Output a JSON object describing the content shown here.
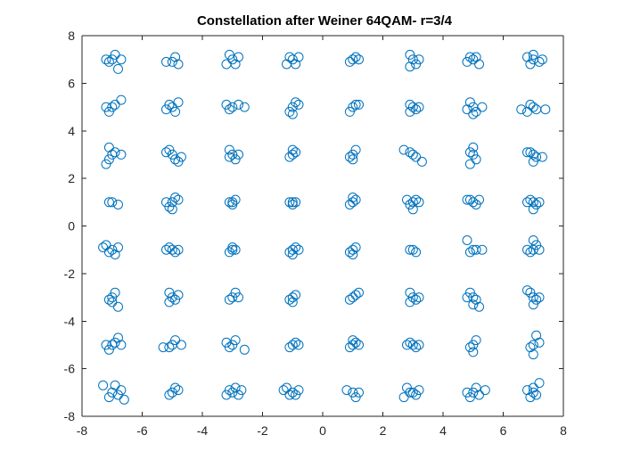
{
  "chart_data": {
    "type": "scatter",
    "title": "Constellation after Weiner 64QAM- r=3/4",
    "xlabel": "",
    "ylabel": "",
    "xlim": [
      -8,
      8
    ],
    "ylim": [
      -8,
      8
    ],
    "x_ticks": [
      -8,
      -6,
      -4,
      -2,
      0,
      2,
      4,
      6,
      8
    ],
    "y_ticks": [
      -8,
      -6,
      -4,
      -2,
      0,
      2,
      4,
      6,
      8
    ],
    "x_tick_labels": [
      "-8",
      "-6",
      "-4",
      "-2",
      "0",
      "2",
      "4",
      "6",
      "8"
    ],
    "y_tick_labels": [
      "-8",
      "-6",
      "-4",
      "-2",
      "0",
      "2",
      "4",
      "6",
      "8"
    ],
    "grid": false,
    "legend": "none",
    "marker": "hollow-circle",
    "marker_color": "#0072BD",
    "axis_color": "#262626",
    "series": [
      {
        "points": [
          [
            -7.0,
            7.0
          ],
          [
            -6.9,
            7.2
          ],
          [
            -7.1,
            6.9
          ],
          [
            -6.8,
            6.6
          ],
          [
            -7.2,
            7.0
          ],
          [
            -6.7,
            7.0
          ],
          [
            -5.0,
            6.9
          ],
          [
            -4.8,
            6.8
          ],
          [
            -5.2,
            6.9
          ],
          [
            -4.9,
            7.1
          ],
          [
            -3.0,
            7.0
          ],
          [
            -2.8,
            7.1
          ],
          [
            -3.2,
            6.8
          ],
          [
            -2.9,
            6.8
          ],
          [
            -3.1,
            7.2
          ],
          [
            -1.0,
            7.0
          ],
          [
            -0.8,
            7.1
          ],
          [
            -1.2,
            6.8
          ],
          [
            -0.9,
            6.8
          ],
          [
            -1.1,
            7.1
          ],
          [
            1.0,
            7.0
          ],
          [
            1.2,
            7.0
          ],
          [
            0.9,
            6.9
          ],
          [
            1.1,
            7.1
          ],
          [
            3.0,
            7.0
          ],
          [
            2.9,
            7.2
          ],
          [
            3.1,
            6.8
          ],
          [
            2.9,
            6.7
          ],
          [
            3.2,
            7.0
          ],
          [
            5.0,
            7.0
          ],
          [
            4.9,
            7.1
          ],
          [
            5.2,
            6.8
          ],
          [
            4.8,
            6.9
          ],
          [
            5.1,
            7.1
          ],
          [
            7.0,
            7.0
          ],
          [
            6.8,
            7.1
          ],
          [
            7.2,
            6.9
          ],
          [
            6.9,
            6.8
          ],
          [
            7.3,
            7.0
          ],
          [
            7.0,
            7.2
          ],
          [
            -7.0,
            5.0
          ],
          [
            -7.1,
            4.8
          ],
          [
            -6.9,
            5.1
          ],
          [
            -6.7,
            5.3
          ],
          [
            -7.2,
            5.0
          ],
          [
            -5.0,
            5.0
          ],
          [
            -4.9,
            4.8
          ],
          [
            -5.1,
            5.1
          ],
          [
            -4.8,
            5.2
          ],
          [
            -5.2,
            4.9
          ],
          [
            -3.0,
            5.0
          ],
          [
            -2.8,
            5.1
          ],
          [
            -3.1,
            4.9
          ],
          [
            -2.6,
            5.0
          ],
          [
            -3.2,
            5.1
          ],
          [
            -1.0,
            5.0
          ],
          [
            -0.9,
            5.2
          ],
          [
            -1.1,
            4.8
          ],
          [
            -0.8,
            5.1
          ],
          [
            -1.0,
            4.7
          ],
          [
            1.0,
            5.0
          ],
          [
            1.1,
            5.1
          ],
          [
            0.9,
            4.8
          ],
          [
            1.2,
            5.1
          ],
          [
            3.0,
            5.0
          ],
          [
            2.9,
            5.1
          ],
          [
            3.1,
            4.9
          ],
          [
            3.2,
            5.0
          ],
          [
            2.9,
            4.8
          ],
          [
            5.0,
            5.0
          ],
          [
            4.9,
            5.2
          ],
          [
            5.1,
            4.8
          ],
          [
            5.3,
            5.0
          ],
          [
            4.8,
            4.9
          ],
          [
            5.0,
            4.7
          ],
          [
            7.0,
            5.0
          ],
          [
            6.9,
            5.1
          ],
          [
            7.1,
            4.9
          ],
          [
            7.4,
            4.9
          ],
          [
            6.6,
            4.9
          ],
          [
            6.8,
            4.8
          ],
          [
            -7.0,
            3.0
          ],
          [
            -7.1,
            2.8
          ],
          [
            -6.9,
            3.1
          ],
          [
            -7.1,
            3.3
          ],
          [
            -6.7,
            3.0
          ],
          [
            -7.2,
            2.6
          ],
          [
            -5.0,
            3.0
          ],
          [
            -5.1,
            3.2
          ],
          [
            -4.9,
            2.8
          ],
          [
            -4.7,
            2.9
          ],
          [
            -5.2,
            3.1
          ],
          [
            -4.8,
            2.7
          ],
          [
            -3.0,
            3.0
          ],
          [
            -3.1,
            3.2
          ],
          [
            -2.9,
            2.8
          ],
          [
            -2.8,
            3.0
          ],
          [
            -3.1,
            2.9
          ],
          [
            -1.0,
            3.0
          ],
          [
            -0.9,
            3.1
          ],
          [
            -1.1,
            2.9
          ],
          [
            -1.0,
            3.2
          ],
          [
            1.0,
            3.0
          ],
          [
            1.1,
            3.2
          ],
          [
            0.9,
            2.9
          ],
          [
            1.0,
            2.8
          ],
          [
            3.0,
            3.0
          ],
          [
            2.9,
            3.1
          ],
          [
            3.1,
            2.9
          ],
          [
            3.3,
            2.7
          ],
          [
            2.7,
            3.2
          ],
          [
            5.0,
            3.0
          ],
          [
            4.9,
            3.1
          ],
          [
            5.1,
            2.8
          ],
          [
            4.9,
            2.6
          ],
          [
            5.0,
            3.3
          ],
          [
            7.0,
            3.0
          ],
          [
            6.9,
            3.1
          ],
          [
            7.1,
            2.9
          ],
          [
            7.3,
            2.9
          ],
          [
            7.0,
            2.7
          ],
          [
            6.8,
            3.1
          ],
          [
            -7.0,
            1.0
          ],
          [
            -6.8,
            0.9
          ],
          [
            -7.1,
            1.0
          ],
          [
            -5.0,
            1.0
          ],
          [
            -4.9,
            1.2
          ],
          [
            -5.1,
            0.8
          ],
          [
            -4.8,
            1.1
          ],
          [
            -5.0,
            0.7
          ],
          [
            -5.2,
            1.0
          ],
          [
            -3.0,
            1.0
          ],
          [
            -2.9,
            1.1
          ],
          [
            -3.1,
            1.0
          ],
          [
            -3.0,
            0.9
          ],
          [
            -1.0,
            1.0
          ],
          [
            -0.9,
            1.0
          ],
          [
            -1.1,
            1.0
          ],
          [
            -1.0,
            0.9
          ],
          [
            1.0,
            1.0
          ],
          [
            1.1,
            1.1
          ],
          [
            0.9,
            0.9
          ],
          [
            1.0,
            1.2
          ],
          [
            3.0,
            1.0
          ],
          [
            3.1,
            1.1
          ],
          [
            2.9,
            0.9
          ],
          [
            3.0,
            0.7
          ],
          [
            3.2,
            1.0
          ],
          [
            2.8,
            1.1
          ],
          [
            5.0,
            1.0
          ],
          [
            4.9,
            1.1
          ],
          [
            5.1,
            0.9
          ],
          [
            5.2,
            1.1
          ],
          [
            4.8,
            1.1
          ],
          [
            7.0,
            1.0
          ],
          [
            6.9,
            1.1
          ],
          [
            7.1,
            0.9
          ],
          [
            7.0,
            0.7
          ],
          [
            7.2,
            1.0
          ],
          [
            6.8,
            1.0
          ],
          [
            -7.0,
            -1.0
          ],
          [
            -7.2,
            -0.8
          ],
          [
            -6.8,
            -0.9
          ],
          [
            -7.1,
            -1.1
          ],
          [
            -6.9,
            -1.2
          ],
          [
            -7.3,
            -0.9
          ],
          [
            -5.0,
            -1.0
          ],
          [
            -5.1,
            -0.9
          ],
          [
            -4.9,
            -1.1
          ],
          [
            -4.8,
            -1.0
          ],
          [
            -5.2,
            -1.0
          ],
          [
            -3.0,
            -1.0
          ],
          [
            -2.9,
            -1.0
          ],
          [
            -3.1,
            -1.1
          ],
          [
            -3.0,
            -0.9
          ],
          [
            -1.0,
            -1.0
          ],
          [
            -0.9,
            -0.9
          ],
          [
            -1.1,
            -1.1
          ],
          [
            -1.0,
            -1.2
          ],
          [
            -0.8,
            -1.0
          ],
          [
            1.0,
            -1.0
          ],
          [
            1.1,
            -0.9
          ],
          [
            0.9,
            -1.1
          ],
          [
            1.0,
            -1.2
          ],
          [
            3.0,
            -1.0
          ],
          [
            2.9,
            -1.0
          ],
          [
            3.1,
            -1.1
          ],
          [
            5.0,
            -1.0
          ],
          [
            4.8,
            -0.6
          ],
          [
            5.1,
            -1.0
          ],
          [
            5.3,
            -1.0
          ],
          [
            4.9,
            -1.1
          ],
          [
            7.0,
            -1.0
          ],
          [
            6.9,
            -1.1
          ],
          [
            7.1,
            -0.8
          ],
          [
            7.0,
            -0.6
          ],
          [
            6.8,
            -1.0
          ],
          [
            7.2,
            -1.0
          ],
          [
            -7.0,
            -3.0
          ],
          [
            -6.9,
            -2.8
          ],
          [
            -7.1,
            -3.1
          ],
          [
            -6.8,
            -3.4
          ],
          [
            -7.0,
            -3.2
          ],
          [
            -5.0,
            -3.0
          ],
          [
            -5.1,
            -2.8
          ],
          [
            -4.9,
            -3.1
          ],
          [
            -4.8,
            -2.9
          ],
          [
            -5.1,
            -3.2
          ],
          [
            -3.0,
            -3.0
          ],
          [
            -2.9,
            -2.8
          ],
          [
            -3.1,
            -3.1
          ],
          [
            -2.8,
            -3.0
          ],
          [
            -1.0,
            -3.0
          ],
          [
            -0.9,
            -2.9
          ],
          [
            -1.1,
            -3.1
          ],
          [
            -1.0,
            -3.2
          ],
          [
            1.0,
            -3.0
          ],
          [
            1.1,
            -2.9
          ],
          [
            0.9,
            -3.1
          ],
          [
            1.2,
            -2.8
          ],
          [
            3.0,
            -3.0
          ],
          [
            2.9,
            -2.8
          ],
          [
            3.1,
            -3.1
          ],
          [
            3.2,
            -3.0
          ],
          [
            2.9,
            -3.2
          ],
          [
            5.0,
            -3.0
          ],
          [
            4.9,
            -2.8
          ],
          [
            5.1,
            -3.1
          ],
          [
            5.0,
            -3.3
          ],
          [
            4.8,
            -3.0
          ],
          [
            5.2,
            -3.4
          ],
          [
            7.0,
            -3.0
          ],
          [
            6.8,
            -2.7
          ],
          [
            7.1,
            -3.1
          ],
          [
            7.0,
            -3.3
          ],
          [
            6.9,
            -2.8
          ],
          [
            7.2,
            -3.0
          ],
          [
            -7.0,
            -5.0
          ],
          [
            -7.1,
            -5.2
          ],
          [
            -6.9,
            -4.9
          ],
          [
            -6.7,
            -5.0
          ],
          [
            -7.2,
            -5.0
          ],
          [
            -6.8,
            -4.7
          ],
          [
            -5.0,
            -5.0
          ],
          [
            -5.3,
            -5.1
          ],
          [
            -4.9,
            -4.8
          ],
          [
            -5.1,
            -5.1
          ],
          [
            -4.7,
            -5.0
          ],
          [
            -3.0,
            -5.0
          ],
          [
            -2.9,
            -4.8
          ],
          [
            -3.1,
            -5.1
          ],
          [
            -2.6,
            -5.2
          ],
          [
            -3.2,
            -4.9
          ],
          [
            -1.0,
            -5.0
          ],
          [
            -0.9,
            -4.9
          ],
          [
            -1.1,
            -5.1
          ],
          [
            -0.8,
            -5.0
          ],
          [
            1.0,
            -5.0
          ],
          [
            1.1,
            -4.9
          ],
          [
            0.9,
            -5.1
          ],
          [
            1.2,
            -5.0
          ],
          [
            1.0,
            -4.8
          ],
          [
            3.0,
            -5.0
          ],
          [
            2.9,
            -4.9
          ],
          [
            3.1,
            -5.1
          ],
          [
            3.2,
            -5.0
          ],
          [
            2.8,
            -5.0
          ],
          [
            5.0,
            -5.0
          ],
          [
            4.9,
            -5.1
          ],
          [
            5.1,
            -4.8
          ],
          [
            5.0,
            -5.3
          ],
          [
            7.0,
            -5.0
          ],
          [
            7.1,
            -4.6
          ],
          [
            6.9,
            -5.1
          ],
          [
            7.2,
            -4.9
          ],
          [
            7.0,
            -5.4
          ],
          [
            -7.0,
            -7.0
          ],
          [
            -7.3,
            -6.7
          ],
          [
            -6.8,
            -7.1
          ],
          [
            -6.7,
            -6.9
          ],
          [
            -7.1,
            -7.2
          ],
          [
            -6.9,
            -6.7
          ],
          [
            -6.6,
            -7.3
          ],
          [
            -5.0,
            -7.0
          ],
          [
            -4.9,
            -6.8
          ],
          [
            -5.1,
            -7.1
          ],
          [
            -4.8,
            -6.9
          ],
          [
            -3.0,
            -7.0
          ],
          [
            -3.2,
            -7.1
          ],
          [
            -2.9,
            -6.8
          ],
          [
            -2.7,
            -6.9
          ],
          [
            -3.1,
            -6.9
          ],
          [
            -2.8,
            -7.1
          ],
          [
            -1.0,
            -7.0
          ],
          [
            -1.2,
            -6.8
          ],
          [
            -0.9,
            -7.1
          ],
          [
            -0.8,
            -6.9
          ],
          [
            -1.1,
            -7.1
          ],
          [
            -1.3,
            -6.9
          ],
          [
            1.0,
            -7.0
          ],
          [
            1.1,
            -7.2
          ],
          [
            0.8,
            -6.9
          ],
          [
            1.2,
            -7.0
          ],
          [
            3.0,
            -7.0
          ],
          [
            2.8,
            -6.8
          ],
          [
            3.1,
            -7.1
          ],
          [
            2.7,
            -7.2
          ],
          [
            3.2,
            -6.9
          ],
          [
            2.9,
            -7.0
          ],
          [
            5.0,
            -7.0
          ],
          [
            4.8,
            -7.0
          ],
          [
            5.1,
            -6.8
          ],
          [
            5.2,
            -7.1
          ],
          [
            4.9,
            -7.2
          ],
          [
            5.4,
            -6.9
          ],
          [
            7.0,
            -7.0
          ],
          [
            6.8,
            -6.9
          ],
          [
            7.2,
            -6.6
          ],
          [
            7.1,
            -7.1
          ],
          [
            6.9,
            -7.2
          ],
          [
            7.0,
            -6.8
          ]
        ]
      }
    ]
  }
}
